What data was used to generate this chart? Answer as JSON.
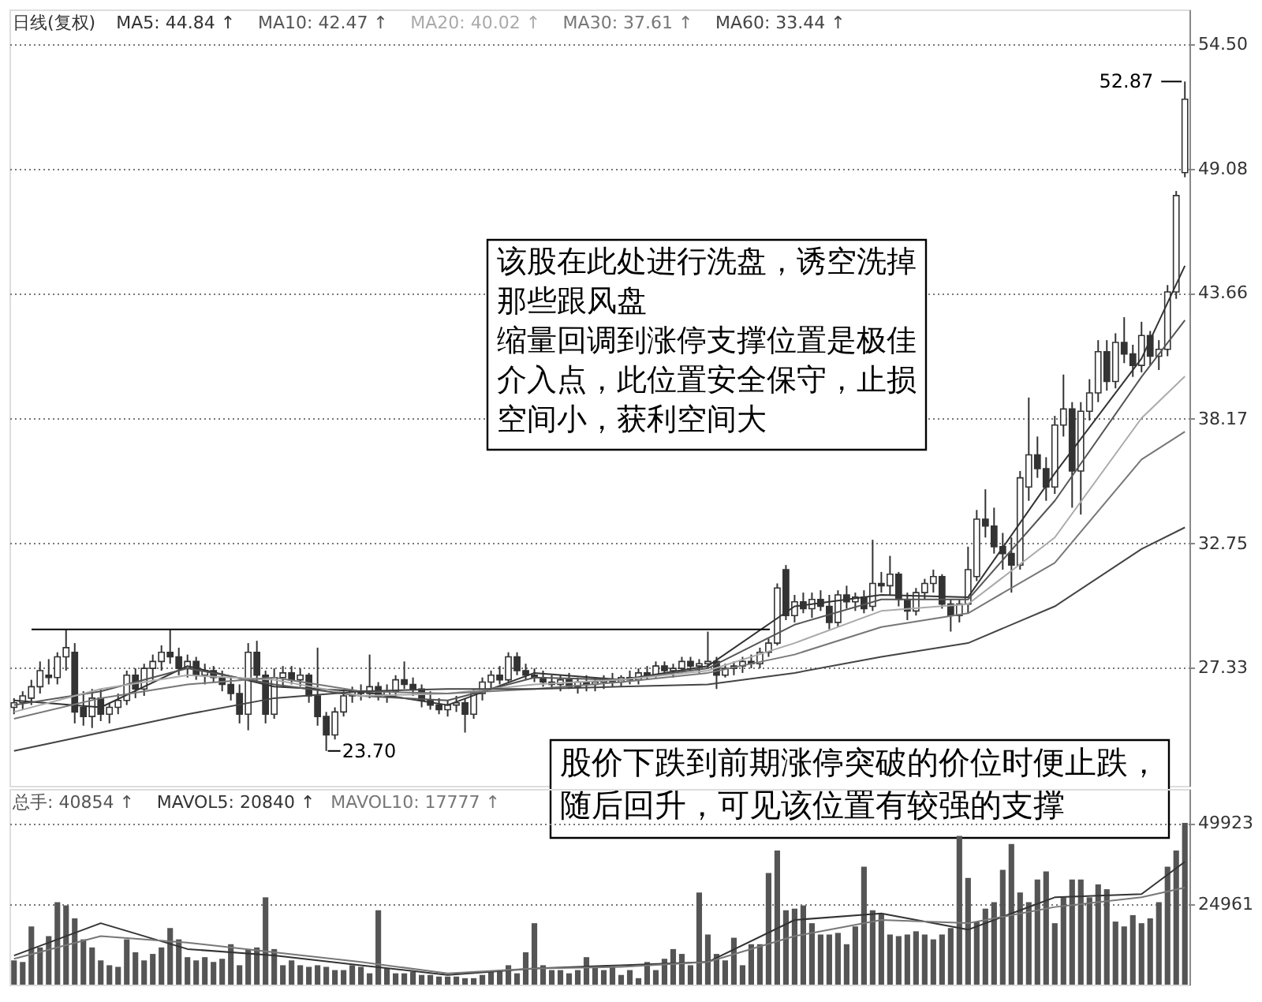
{
  "chart_data": [
    {
      "type": "candlestick",
      "color": "#333333",
      "categories": [
        null,
        null,
        null,
        null,
        null,
        null,
        null,
        null,
        null,
        null,
        null,
        null,
        null,
        null,
        null,
        null,
        null,
        null,
        null,
        null,
        null,
        null,
        null,
        null,
        null,
        null,
        null,
        null,
        null,
        null,
        null,
        null,
        null,
        null,
        null,
        null,
        null,
        null,
        null,
        null,
        null,
        null,
        null,
        null,
        null,
        null,
        null,
        null,
        null,
        null,
        null,
        null,
        null,
        null,
        null,
        null,
        null,
        null,
        null,
        null,
        null,
        null,
        null,
        null,
        null,
        null,
        null,
        null,
        null,
        null,
        null,
        null,
        null,
        null,
        null,
        null,
        null,
        null,
        null,
        null,
        null,
        null,
        null,
        null,
        null,
        null,
        null,
        null,
        null,
        null,
        null,
        null,
        null,
        null,
        null,
        null,
        null,
        null,
        null,
        null,
        null,
        null,
        null,
        null,
        null,
        null,
        null,
        null,
        null,
        null,
        null,
        null,
        null,
        null,
        null,
        null,
        null,
        null,
        null,
        null,
        null,
        null,
        null,
        null,
        null,
        null,
        null,
        null,
        null,
        null,
        null,
        null,
        null,
        null,
        null,
        null
      ],
      "ohlc": [
        [
          25.6,
          26.0,
          25.3,
          25.8
        ],
        [
          25.8,
          26.3,
          25.5,
          26.1
        ],
        [
          26.0,
          26.8,
          25.7,
          26.5
        ],
        [
          26.5,
          27.6,
          26.2,
          27.2
        ],
        [
          27.0,
          27.7,
          26.6,
          26.9
        ],
        [
          26.9,
          28.0,
          26.6,
          27.8
        ],
        [
          27.8,
          29.0,
          27.2,
          28.2
        ],
        [
          28.0,
          28.4,
          24.9,
          25.4
        ],
        [
          25.6,
          26.3,
          24.8,
          25.2
        ],
        [
          25.2,
          26.4,
          24.7,
          26.0
        ],
        [
          26.0,
          26.4,
          25.0,
          25.3
        ],
        [
          25.3,
          25.8,
          24.9,
          25.6
        ],
        [
          25.6,
          26.2,
          25.3,
          25.9
        ],
        [
          25.9,
          27.2,
          25.7,
          27.0
        ],
        [
          27.0,
          27.3,
          26.0,
          26.4
        ],
        [
          26.4,
          27.5,
          26.1,
          27.3
        ],
        [
          27.3,
          27.9,
          26.8,
          27.6
        ],
        [
          27.6,
          28.3,
          27.2,
          28.0
        ],
        [
          28.0,
          29.0,
          27.5,
          27.8
        ],
        [
          27.8,
          28.2,
          27.0,
          27.3
        ],
        [
          27.3,
          27.9,
          26.9,
          27.6
        ],
        [
          27.6,
          27.8,
          26.8,
          27.0
        ],
        [
          27.0,
          27.5,
          26.6,
          27.2
        ],
        [
          27.2,
          27.4,
          26.7,
          26.9
        ],
        [
          26.9,
          27.2,
          26.3,
          26.6
        ],
        [
          26.6,
          26.9,
          25.9,
          26.2
        ],
        [
          26.2,
          26.6,
          24.9,
          25.3
        ],
        [
          25.3,
          28.4,
          24.6,
          28.0
        ],
        [
          28.0,
          28.5,
          26.7,
          27.0
        ],
        [
          27.0,
          27.2,
          24.9,
          25.3
        ],
        [
          25.3,
          27.3,
          25.1,
          26.9
        ],
        [
          26.9,
          27.4,
          26.5,
          27.1
        ],
        [
          27.1,
          27.4,
          26.6,
          26.8
        ],
        [
          26.8,
          27.3,
          26.5,
          27.0
        ],
        [
          27.0,
          27.1,
          25.8,
          26.1
        ],
        [
          26.1,
          28.2,
          24.8,
          25.2
        ],
        [
          25.2,
          25.4,
          23.7,
          24.4
        ],
        [
          24.4,
          25.6,
          24.2,
          25.4
        ],
        [
          25.4,
          26.3,
          25.2,
          26.1
        ],
        [
          26.1,
          26.5,
          25.8,
          26.3
        ],
        [
          26.3,
          26.6,
          25.9,
          26.2
        ],
        [
          26.2,
          27.9,
          26.0,
          26.5
        ],
        [
          26.5,
          26.7,
          25.9,
          26.1
        ],
        [
          26.1,
          26.6,
          25.8,
          26.3
        ],
        [
          26.3,
          27.0,
          26.1,
          26.8
        ],
        [
          26.8,
          27.6,
          26.4,
          26.6
        ],
        [
          26.6,
          26.9,
          26.1,
          26.4
        ],
        [
          26.4,
          26.6,
          25.6,
          25.9
        ],
        [
          25.9,
          26.3,
          25.5,
          25.7
        ],
        [
          25.7,
          26.0,
          25.3,
          25.5
        ],
        [
          25.5,
          25.9,
          25.2,
          25.7
        ],
        [
          25.7,
          26.1,
          25.4,
          25.8
        ],
        [
          25.8,
          26.0,
          24.5,
          25.3
        ],
        [
          25.3,
          26.4,
          25.1,
          26.2
        ],
        [
          26.2,
          26.9,
          25.9,
          26.7
        ],
        [
          26.7,
          27.2,
          26.4,
          27.0
        ],
        [
          27.0,
          27.4,
          26.6,
          26.8
        ],
        [
          26.8,
          28.0,
          26.7,
          27.8
        ],
        [
          27.8,
          28.0,
          27.0,
          27.2
        ],
        [
          27.2,
          27.5,
          26.8,
          27.0
        ],
        [
          27.0,
          27.3,
          26.7,
          26.9
        ],
        [
          26.9,
          27.2,
          26.5,
          26.7
        ],
        [
          26.7,
          27.0,
          26.4,
          26.6
        ],
        [
          26.6,
          27.0,
          26.3,
          26.8
        ],
        [
          26.8,
          27.1,
          26.4,
          26.5
        ],
        [
          26.5,
          26.9,
          26.2,
          26.7
        ],
        [
          26.7,
          27.0,
          26.3,
          26.6
        ],
        [
          26.6,
          26.9,
          26.3,
          26.7
        ],
        [
          26.7,
          27.0,
          26.4,
          26.8
        ],
        [
          26.8,
          27.1,
          26.5,
          26.7
        ],
        [
          26.7,
          27.0,
          26.5,
          26.9
        ],
        [
          26.9,
          27.2,
          26.6,
          26.8
        ],
        [
          26.8,
          27.3,
          26.6,
          27.1
        ],
        [
          27.1,
          27.4,
          26.8,
          27.0
        ],
        [
          27.0,
          27.6,
          26.9,
          27.4
        ],
        [
          27.4,
          27.6,
          27.0,
          27.2
        ],
        [
          27.2,
          27.5,
          26.9,
          27.3
        ],
        [
          27.3,
          27.8,
          27.1,
          27.6
        ],
        [
          27.6,
          27.8,
          27.2,
          27.4
        ],
        [
          27.4,
          27.7,
          27.1,
          27.5
        ],
        [
          27.5,
          28.9,
          27.3,
          27.6
        ],
        [
          27.6,
          27.8,
          26.4,
          27.0
        ],
        [
          27.0,
          27.5,
          26.9,
          27.3
        ],
        [
          27.3,
          27.6,
          27.0,
          27.4
        ],
        [
          27.4,
          27.8,
          27.1,
          27.6
        ],
        [
          27.6,
          27.9,
          27.3,
          27.5
        ],
        [
          27.5,
          28.2,
          27.3,
          28.0
        ],
        [
          28.0,
          28.6,
          27.8,
          28.4
        ],
        [
          28.4,
          31.0,
          28.3,
          30.8
        ],
        [
          31.6,
          31.8,
          29.4,
          29.6
        ],
        [
          29.6,
          30.5,
          29.3,
          30.2
        ],
        [
          30.2,
          30.6,
          29.7,
          29.9
        ],
        [
          29.9,
          30.6,
          29.5,
          30.3
        ],
        [
          30.3,
          30.7,
          29.8,
          30.0
        ],
        [
          30.0,
          30.5,
          29.0,
          29.3
        ],
        [
          29.3,
          30.7,
          29.1,
          30.5
        ],
        [
          30.5,
          30.9,
          29.9,
          30.2
        ],
        [
          30.2,
          30.6,
          29.8,
          30.4
        ],
        [
          30.4,
          30.7,
          29.7,
          29.9
        ],
        [
          30.0,
          32.9,
          29.8,
          31.0
        ],
        [
          31.0,
          31.5,
          30.6,
          30.9
        ],
        [
          30.9,
          32.2,
          30.5,
          31.4
        ],
        [
          31.4,
          31.5,
          30.0,
          30.3
        ],
        [
          30.3,
          30.6,
          29.4,
          29.8
        ],
        [
          29.8,
          30.8,
          29.6,
          30.6
        ],
        [
          30.6,
          31.2,
          30.3,
          31.0
        ],
        [
          31.0,
          31.6,
          30.6,
          31.3
        ],
        [
          31.3,
          31.4,
          29.9,
          30.1
        ],
        [
          30.1,
          30.3,
          28.9,
          29.6
        ],
        [
          29.6,
          30.3,
          29.3,
          30.1
        ],
        [
          30.1,
          32.6,
          29.7,
          31.6
        ],
        [
          31.3,
          34.2,
          31.1,
          33.8
        ],
        [
          33.8,
          35.1,
          33.0,
          33.5
        ],
        [
          33.5,
          34.3,
          32.3,
          32.6
        ],
        [
          32.6,
          33.2,
          31.6,
          32.3
        ],
        [
          32.3,
          33.0,
          30.6,
          31.8
        ],
        [
          31.8,
          35.9,
          31.6,
          35.6
        ],
        [
          35.2,
          39.1,
          34.6,
          36.6
        ],
        [
          36.6,
          37.4,
          35.6,
          36.0
        ],
        [
          36.0,
          36.5,
          34.6,
          35.2
        ],
        [
          35.2,
          38.3,
          34.9,
          37.9
        ],
        [
          37.9,
          40.1,
          37.4,
          38.6
        ],
        [
          38.6,
          38.9,
          34.3,
          35.9
        ],
        [
          35.9,
          38.9,
          34.0,
          38.5
        ],
        [
          38.5,
          39.9,
          38.1,
          39.3
        ],
        [
          39.3,
          41.6,
          38.9,
          41.1
        ],
        [
          41.1,
          41.6,
          39.4,
          39.8
        ],
        [
          39.8,
          41.9,
          39.5,
          41.5
        ],
        [
          41.5,
          42.6,
          40.6,
          41.0
        ],
        [
          41.0,
          41.4,
          40.0,
          40.5
        ],
        [
          40.5,
          42.4,
          40.2,
          41.8
        ],
        [
          41.8,
          42.0,
          40.5,
          40.9
        ],
        [
          40.9,
          41.6,
          40.3,
          41.2
        ],
        [
          41.2,
          44.0,
          40.9,
          43.7
        ],
        [
          43.7,
          48.1,
          43.4,
          47.9
        ],
        [
          48.9,
          52.87,
          48.7,
          52.1
        ]
      ],
      "series": [
        {
          "type": "line",
          "color": "#333333",
          "values": [
            25.9,
            null,
            null,
            null,
            null,
            null,
            null,
            null,
            null,
            null,
            25.6,
            null,
            null,
            null,
            null,
            null,
            null,
            null,
            null,
            null,
            27.4,
            null,
            null,
            null,
            null,
            null,
            null,
            null,
            null,
            null,
            26.5,
            null,
            null,
            null,
            null,
            null,
            null,
            null,
            null,
            null,
            26.3,
            null,
            null,
            null,
            null,
            null,
            null,
            null,
            null,
            null,
            25.7,
            null,
            null,
            null,
            null,
            null,
            null,
            null,
            null,
            null,
            27.1,
            null,
            null,
            null,
            null,
            null,
            null,
            null,
            null,
            null,
            26.8,
            null,
            null,
            null,
            null,
            null,
            null,
            null,
            null,
            null,
            27.4,
            null,
            null,
            null,
            null,
            null,
            null,
            null,
            null,
            null,
            30.0,
            null,
            null,
            null,
            null,
            null,
            null,
            null,
            null,
            null,
            30.5,
            null,
            null,
            null,
            null,
            null,
            null,
            null,
            null,
            null,
            30.4,
            null,
            null,
            null,
            null,
            null,
            null,
            null,
            null,
            null,
            35.8,
            null,
            null,
            null,
            null,
            null,
            null,
            null,
            null,
            null,
            40.8,
            null,
            null,
            null,
            null,
            44.84
          ]
        },
        {
          "type": "line",
          "color": "#555555",
          "values": [
            25.7,
            null,
            null,
            null,
            null,
            null,
            null,
            null,
            null,
            null,
            26.3,
            null,
            null,
            null,
            null,
            null,
            null,
            null,
            null,
            null,
            27.3,
            null,
            null,
            null,
            null,
            null,
            null,
            null,
            null,
            null,
            26.6,
            null,
            null,
            null,
            null,
            null,
            null,
            null,
            null,
            null,
            26.1,
            null,
            null,
            null,
            null,
            null,
            null,
            null,
            null,
            null,
            25.9,
            null,
            null,
            null,
            null,
            null,
            null,
            null,
            null,
            null,
            26.9,
            null,
            null,
            null,
            null,
            null,
            null,
            null,
            null,
            null,
            26.8,
            null,
            null,
            null,
            null,
            null,
            null,
            null,
            null,
            null,
            27.3,
            null,
            null,
            null,
            null,
            null,
            null,
            null,
            null,
            null,
            29.2,
            null,
            null,
            null,
            null,
            null,
            null,
            null,
            null,
            null,
            30.3,
            null,
            null,
            null,
            null,
            null,
            null,
            null,
            null,
            null,
            30.3,
            null,
            null,
            null,
            null,
            null,
            null,
            null,
            null,
            null,
            34.6,
            null,
            null,
            null,
            null,
            null,
            null,
            null,
            null,
            null,
            40.0,
            null,
            null,
            null,
            null,
            42.47
          ]
        },
        {
          "type": "line",
          "color": "#aaaaaa",
          "values": [
            25.4,
            null,
            null,
            null,
            null,
            null,
            null,
            null,
            null,
            null,
            26.4,
            null,
            null,
            null,
            null,
            null,
            null,
            null,
            null,
            null,
            27.0,
            null,
            null,
            null,
            null,
            null,
            null,
            null,
            null,
            null,
            26.8,
            null,
            null,
            null,
            null,
            null,
            null,
            null,
            null,
            null,
            26.1,
            null,
            null,
            null,
            null,
            null,
            null,
            null,
            null,
            null,
            26.2,
            null,
            null,
            null,
            null,
            null,
            null,
            null,
            null,
            null,
            26.6,
            null,
            null,
            null,
            null,
            null,
            null,
            null,
            null,
            null,
            26.8,
            null,
            null,
            null,
            null,
            null,
            null,
            null,
            null,
            null,
            27.2,
            null,
            null,
            null,
            null,
            null,
            null,
            null,
            null,
            null,
            28.4,
            null,
            null,
            null,
            null,
            null,
            null,
            null,
            null,
            null,
            29.8,
            null,
            null,
            null,
            null,
            null,
            null,
            null,
            null,
            null,
            30.1,
            null,
            null,
            null,
            null,
            null,
            null,
            null,
            null,
            null,
            33.0,
            null,
            null,
            null,
            null,
            null,
            null,
            null,
            null,
            null,
            38.2,
            null,
            null,
            null,
            null,
            40.02
          ]
        },
        {
          "type": "line",
          "color": "#777777",
          "values": [
            25.1,
            null,
            null,
            null,
            null,
            null,
            null,
            null,
            null,
            null,
            26.0,
            null,
            null,
            null,
            null,
            null,
            null,
            null,
            null,
            null,
            26.6,
            null,
            null,
            null,
            null,
            null,
            null,
            null,
            null,
            null,
            26.9,
            null,
            null,
            null,
            null,
            null,
            null,
            null,
            null,
            null,
            26.3,
            null,
            null,
            null,
            null,
            null,
            null,
            null,
            null,
            null,
            26.2,
            null,
            null,
            null,
            null,
            null,
            null,
            null,
            null,
            null,
            26.4,
            null,
            null,
            null,
            null,
            null,
            null,
            null,
            null,
            null,
            26.7,
            null,
            null,
            null,
            null,
            null,
            null,
            null,
            null,
            null,
            27.1,
            null,
            null,
            null,
            null,
            null,
            null,
            null,
            null,
            null,
            27.9,
            null,
            null,
            null,
            null,
            null,
            null,
            null,
            null,
            null,
            29.1,
            null,
            null,
            null,
            null,
            null,
            null,
            null,
            null,
            null,
            29.7,
            null,
            null,
            null,
            null,
            null,
            null,
            null,
            null,
            null,
            31.9,
            null,
            null,
            null,
            null,
            null,
            null,
            null,
            null,
            null,
            36.4,
            null,
            null,
            null,
            null,
            37.61
          ]
        },
        {
          "type": "line",
          "color": "#444444",
          "values": [
            23.7,
            null,
            null,
            null,
            null,
            null,
            null,
            null,
            null,
            null,
            24.5,
            null,
            null,
            null,
            null,
            null,
            null,
            null,
            null,
            null,
            25.3,
            null,
            null,
            null,
            null,
            null,
            null,
            null,
            null,
            null,
            26.0,
            null,
            null,
            null,
            null,
            null,
            null,
            null,
            null,
            null,
            26.3,
            null,
            null,
            null,
            null,
            null,
            null,
            null,
            null,
            null,
            26.4,
            null,
            null,
            null,
            null,
            null,
            null,
            null,
            null,
            null,
            26.4,
            null,
            null,
            null,
            null,
            null,
            null,
            null,
            null,
            null,
            26.5,
            null,
            null,
            null,
            null,
            null,
            null,
            null,
            null,
            null,
            26.6,
            null,
            null,
            null,
            null,
            null,
            null,
            null,
            null,
            null,
            27.1,
            null,
            null,
            null,
            null,
            null,
            null,
            null,
            null,
            null,
            27.8,
            null,
            null,
            null,
            null,
            null,
            null,
            null,
            null,
            null,
            28.4,
            null,
            null,
            null,
            null,
            null,
            null,
            null,
            null,
            null,
            30.0,
            null,
            null,
            null,
            null,
            null,
            null,
            null,
            null,
            null,
            32.5,
            null,
            null,
            null,
            null,
            33.44
          ]
        }
      ],
      "ylim": [
        22.18,
        56.01
      ],
      "yticks": [
        {
          "value": 27.33,
          "label": "27.33"
        },
        {
          "value": 32.75,
          "label": "32.75"
        },
        {
          "value": 38.17,
          "label": "38.17"
        },
        {
          "value": 43.66,
          "label": "43.66"
        },
        {
          "value": 49.08,
          "label": "49.08"
        },
        {
          "value": 54.5,
          "label": "54.50"
        }
      ],
      "grid": "y",
      "tick_labels": "y",
      "marker": "none",
      "ref_lines": [
        {
          "axis": "y",
          "value": 29.0,
          "color": "#000000",
          "line_style": "solid"
        }
      ],
      "annotations": [
        "日线(复权)",
        "MA5: 44.84 ↑",
        "MA10: 42.47 ↑",
        "MA20: 40.02 ↑",
        "MA30: 37.61 ↑",
        "MA60: 33.44 ↑",
        "该股在此处进行洗盘，诱空洗掉那些跟风盘",
        "缩量回调到涨停支撑位置是极佳介入点，此位置安全保守，止损空间小，获利空间大",
        "股价下跌到前期涨停突破的价位时便止跌，随后回升，可见该位置有较强的支撑",
        "52.87",
        "23.70"
      ]
    },
    {
      "type": "bar",
      "color": "#555555",
      "categories": [
        null,
        null,
        null,
        null,
        null,
        null,
        null,
        null,
        null,
        null,
        null,
        null,
        null,
        null,
        null,
        null,
        null,
        null,
        null,
        null,
        null,
        null,
        null,
        null,
        null,
        null,
        null,
        null,
        null,
        null,
        null,
        null,
        null,
        null,
        null,
        null,
        null,
        null,
        null,
        null,
        null,
        null,
        null,
        null,
        null,
        null,
        null,
        null,
        null,
        null,
        null,
        null,
        null,
        null,
        null,
        null,
        null,
        null,
        null,
        null,
        null,
        null,
        null,
        null,
        null,
        null,
        null,
        null,
        null,
        null,
        null,
        null,
        null,
        null,
        null,
        null,
        null,
        null,
        null,
        null,
        null,
        null,
        null,
        null,
        null,
        null,
        null,
        null,
        null,
        null,
        null,
        null,
        null,
        null,
        null,
        null,
        null,
        null,
        null,
        null,
        null,
        null,
        null,
        null,
        null,
        null,
        null,
        null,
        null,
        null,
        null,
        null,
        null,
        null,
        null,
        null,
        null,
        null,
        null,
        null,
        null,
        null,
        null,
        null,
        null,
        null,
        null,
        null,
        null,
        null,
        null,
        null,
        null,
        null,
        null,
        null
      ],
      "values": [
        7500,
        7000,
        18000,
        11500,
        15000,
        25500,
        24500,
        20500,
        14000,
        11500,
        7500,
        6000,
        5500,
        14000,
        10000,
        7500,
        9500,
        11500,
        17500,
        14000,
        8500,
        7500,
        8500,
        7000,
        8000,
        12500,
        6000,
        11000,
        11500,
        27000,
        11000,
        6000,
        7500,
        6000,
        5500,
        6000,
        5500,
        4500,
        4500,
        6000,
        5500,
        3500,
        23000,
        5000,
        3500,
        3500,
        4000,
        3000,
        3000,
        2500,
        2500,
        2500,
        2000,
        2000,
        3000,
        4000,
        4500,
        6000,
        3500,
        10000,
        19000,
        6000,
        4500,
        4500,
        3500,
        4500,
        8500,
        5500,
        4500,
        5500,
        3000,
        4500,
        2000,
        7000,
        4500,
        8000,
        11000,
        9500,
        6000,
        28500,
        15500,
        9500,
        7500,
        14500,
        6000,
        12500,
        12500,
        34500,
        41500,
        23000,
        23500,
        24500,
        19000,
        15500,
        15500,
        16000,
        12500,
        18000,
        36500,
        23000,
        22000,
        15500,
        15000,
        15500,
        16500,
        15500,
        14000,
        15500,
        17500,
        46000,
        33000,
        19500,
        23500,
        25500,
        35500,
        43500,
        28500,
        25500,
        32500,
        35000,
        19000,
        27000,
        32500,
        32500,
        27000,
        31000,
        29500,
        19500,
        18000,
        21500,
        19000,
        20500,
        25500,
        36500,
        41500,
        50000
      ],
      "series": [
        {
          "type": "line",
          "color": "#333333",
          "values": [
            9000,
            null,
            null,
            null,
            null,
            null,
            null,
            null,
            null,
            null,
            19000,
            null,
            null,
            null,
            null,
            null,
            null,
            null,
            null,
            null,
            11000,
            null,
            null,
            null,
            null,
            null,
            null,
            null,
            null,
            null,
            9000,
            null,
            null,
            null,
            null,
            null,
            null,
            null,
            null,
            null,
            6000,
            null,
            null,
            null,
            null,
            null,
            null,
            null,
            null,
            null,
            3000,
            null,
            null,
            null,
            null,
            null,
            null,
            null,
            null,
            null,
            5000,
            null,
            null,
            null,
            null,
            null,
            null,
            null,
            null,
            null,
            6000,
            null,
            null,
            null,
            null,
            null,
            null,
            null,
            null,
            null,
            7000,
            null,
            null,
            null,
            null,
            null,
            null,
            null,
            null,
            null,
            20000,
            null,
            null,
            null,
            null,
            null,
            null,
            null,
            null,
            null,
            22000,
            null,
            null,
            null,
            null,
            null,
            null,
            null,
            null,
            null,
            17000,
            null,
            null,
            null,
            null,
            null,
            null,
            null,
            null,
            null,
            27000,
            null,
            null,
            null,
            null,
            null,
            null,
            null,
            null,
            null,
            28000,
            null,
            null,
            null,
            null,
            38000
          ]
        },
        {
          "type": "line",
          "color": "#777777",
          "values": [
            8000,
            null,
            null,
            null,
            null,
            null,
            null,
            null,
            null,
            null,
            15000,
            null,
            null,
            null,
            null,
            null,
            null,
            null,
            null,
            null,
            13000,
            null,
            null,
            null,
            null,
            null,
            null,
            null,
            null,
            null,
            10000,
            null,
            null,
            null,
            null,
            null,
            null,
            null,
            null,
            null,
            7000,
            null,
            null,
            null,
            null,
            null,
            null,
            null,
            null,
            null,
            3500,
            null,
            null,
            null,
            null,
            null,
            null,
            null,
            null,
            null,
            5000,
            null,
            null,
            null,
            null,
            null,
            null,
            null,
            null,
            null,
            5500,
            null,
            null,
            null,
            null,
            null,
            null,
            null,
            null,
            null,
            7000,
            null,
            null,
            null,
            null,
            null,
            null,
            null,
            null,
            null,
            15000,
            null,
            null,
            null,
            null,
            null,
            null,
            null,
            null,
            null,
            20000,
            null,
            null,
            null,
            null,
            null,
            null,
            null,
            null,
            null,
            19000,
            null,
            null,
            null,
            null,
            null,
            null,
            null,
            null,
            null,
            24000,
            null,
            null,
            null,
            null,
            null,
            null,
            null,
            null,
            null,
            27000,
            null,
            null,
            null,
            null,
            30000
          ]
        }
      ],
      "ylim": [
        0,
        60500
      ],
      "yticks": [
        24961,
        49923
      ],
      "grid": "y",
      "tick_labels": "y",
      "marker": "none",
      "annotations": [
        "总手: 40854 ↑",
        "MAVOL5: 20840 ↑",
        "MAVOL10: 17777 ↑"
      ]
    }
  ]
}
